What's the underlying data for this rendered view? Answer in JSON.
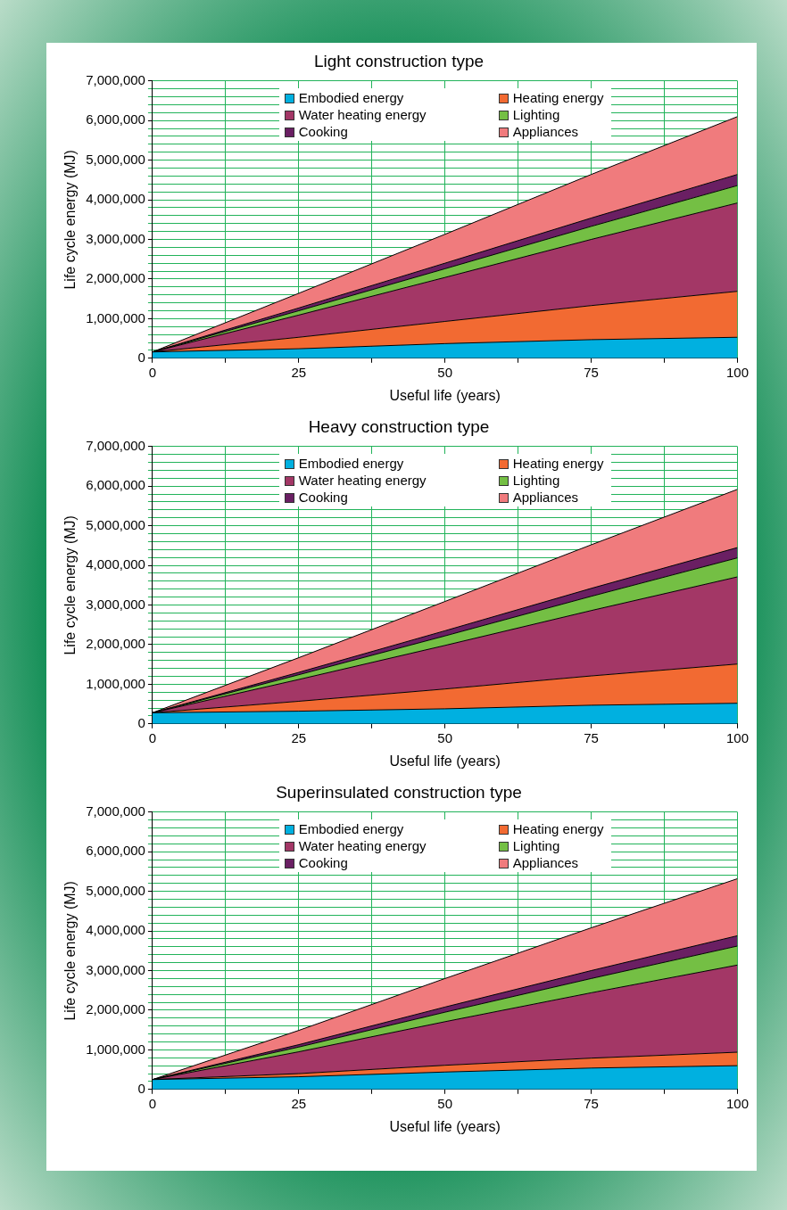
{
  "chart_data": [
    {
      "type": "area",
      "title": "Light construction type",
      "xlabel": "Useful life (years)",
      "ylabel": "Life cycle energy (MJ)",
      "stacked": true,
      "legend": "top",
      "grid": true,
      "x": [
        0,
        25,
        50,
        75,
        100
      ],
      "xlim": [
        0,
        100
      ],
      "xticks": [
        0,
        {
          "value": 12.5,
          "label": null
        },
        25,
        {
          "value": 37.5,
          "label": null
        },
        50,
        {
          "value": 62.5,
          "label": null
        },
        75,
        {
          "value": 87.5,
          "label": null
        },
        100
      ],
      "ylim": [
        0,
        7000000
      ],
      "yticks": [
        {
          "value": 0,
          "label": "0"
        },
        {
          "value": 200000,
          "label": null
        },
        {
          "value": 400000,
          "label": null
        },
        {
          "value": 600000,
          "label": null
        },
        {
          "value": 800000,
          "label": null
        },
        {
          "value": 1000000,
          "label": "1,000,000"
        },
        {
          "value": 1200000,
          "label": null
        },
        {
          "value": 1400000,
          "label": null
        },
        {
          "value": 1600000,
          "label": null
        },
        {
          "value": 1800000,
          "label": null
        },
        {
          "value": 2000000,
          "label": "2,000,000"
        },
        {
          "value": 2200000,
          "label": null
        },
        {
          "value": 2400000,
          "label": null
        },
        {
          "value": 2600000,
          "label": null
        },
        {
          "value": 2800000,
          "label": null
        },
        {
          "value": 3000000,
          "label": "3,000,000"
        },
        {
          "value": 3200000,
          "label": null
        },
        {
          "value": 3400000,
          "label": null
        },
        {
          "value": 3600000,
          "label": null
        },
        {
          "value": 3800000,
          "label": null
        },
        {
          "value": 4000000,
          "label": "4,000,000"
        },
        {
          "value": 4200000,
          "label": null
        },
        {
          "value": 4400000,
          "label": null
        },
        {
          "value": 4600000,
          "label": null
        },
        {
          "value": 4800000,
          "label": null
        },
        {
          "value": 5000000,
          "label": "5,000,000"
        },
        {
          "value": 5200000,
          "label": null
        },
        {
          "value": 5400000,
          "label": null
        },
        {
          "value": 5600000,
          "label": null
        },
        {
          "value": 5800000,
          "label": null
        },
        {
          "value": 6000000,
          "label": "6,000,000"
        },
        {
          "value": 6200000,
          "label": null
        },
        {
          "value": 6400000,
          "label": null
        },
        {
          "value": 6600000,
          "label": null
        },
        {
          "value": 6800000,
          "label": null
        },
        {
          "value": 7000000,
          "label": "7,000,000"
        }
      ],
      "series": [
        {
          "name": "Embodied energy",
          "color": "#00b0e0",
          "values": [
            160000,
            240000,
            370000,
            470000,
            530000
          ]
        },
        {
          "name": "Heating energy",
          "color": "#f26a32",
          "values": [
            0,
            290000,
            560000,
            860000,
            1160000
          ]
        },
        {
          "name": "Water heating energy",
          "color": "#a33766",
          "values": [
            0,
            560000,
            1110000,
            1670000,
            2230000
          ]
        },
        {
          "name": "Lighting",
          "color": "#74bf44",
          "values": [
            0,
            110000,
            220000,
            330000,
            440000
          ]
        },
        {
          "name": "Cooking",
          "color": "#6a1f63",
          "values": [
            0,
            70000,
            140000,
            210000,
            280000
          ]
        },
        {
          "name": "Appliances",
          "color": "#f07b7d",
          "values": [
            0,
            370000,
            730000,
            1100000,
            1460000
          ]
        }
      ]
    },
    {
      "type": "area",
      "title": "Heavy construction type",
      "xlabel": "Useful life (years)",
      "ylabel": "Life cycle energy (MJ)",
      "stacked": true,
      "legend": "top",
      "grid": true,
      "x": [
        0,
        25,
        50,
        75,
        100
      ],
      "xlim": [
        0,
        100
      ],
      "xticks": [
        0,
        {
          "value": 12.5,
          "label": null
        },
        25,
        {
          "value": 37.5,
          "label": null
        },
        50,
        {
          "value": 62.5,
          "label": null
        },
        75,
        {
          "value": 87.5,
          "label": null
        },
        100
      ],
      "ylim": [
        0,
        7000000
      ],
      "yticks": [
        {
          "value": 0,
          "label": "0"
        },
        {
          "value": 200000,
          "label": null
        },
        {
          "value": 400000,
          "label": null
        },
        {
          "value": 600000,
          "label": null
        },
        {
          "value": 800000,
          "label": null
        },
        {
          "value": 1000000,
          "label": "1,000,000"
        },
        {
          "value": 1200000,
          "label": null
        },
        {
          "value": 1400000,
          "label": null
        },
        {
          "value": 1600000,
          "label": null
        },
        {
          "value": 1800000,
          "label": null
        },
        {
          "value": 2000000,
          "label": "2,000,000"
        },
        {
          "value": 2200000,
          "label": null
        },
        {
          "value": 2400000,
          "label": null
        },
        {
          "value": 2600000,
          "label": null
        },
        {
          "value": 2800000,
          "label": null
        },
        {
          "value": 3000000,
          "label": "3,000,000"
        },
        {
          "value": 3200000,
          "label": null
        },
        {
          "value": 3400000,
          "label": null
        },
        {
          "value": 3600000,
          "label": null
        },
        {
          "value": 3800000,
          "label": null
        },
        {
          "value": 4000000,
          "label": "4,000,000"
        },
        {
          "value": 4200000,
          "label": null
        },
        {
          "value": 4400000,
          "label": null
        },
        {
          "value": 4600000,
          "label": null
        },
        {
          "value": 4800000,
          "label": null
        },
        {
          "value": 5000000,
          "label": "5,000,000"
        },
        {
          "value": 5200000,
          "label": null
        },
        {
          "value": 5400000,
          "label": null
        },
        {
          "value": 5600000,
          "label": null
        },
        {
          "value": 5800000,
          "label": null
        },
        {
          "value": 6000000,
          "label": "6,000,000"
        },
        {
          "value": 6200000,
          "label": null
        },
        {
          "value": 6400000,
          "label": null
        },
        {
          "value": 6600000,
          "label": null
        },
        {
          "value": 6800000,
          "label": null
        },
        {
          "value": 7000000,
          "label": "7,000,000"
        }
      ],
      "series": [
        {
          "name": "Embodied energy",
          "color": "#00b0e0",
          "values": [
            280000,
            320000,
            380000,
            470000,
            520000
          ]
        },
        {
          "name": "Heating energy",
          "color": "#f26a32",
          "values": [
            0,
            250000,
            500000,
            740000,
            990000
          ]
        },
        {
          "name": "Water heating energy",
          "color": "#a33766",
          "values": [
            0,
            550000,
            1100000,
            1650000,
            2200000
          ]
        },
        {
          "name": "Lighting",
          "color": "#74bf44",
          "values": [
            0,
            120000,
            240000,
            360000,
            480000
          ]
        },
        {
          "name": "Cooking",
          "color": "#6a1f63",
          "values": [
            0,
            60000,
            130000,
            200000,
            260000
          ]
        },
        {
          "name": "Appliances",
          "color": "#f07b7d",
          "values": [
            0,
            370000,
            740000,
            1100000,
            1470000
          ]
        }
      ]
    },
    {
      "type": "area",
      "title": "Superinsulated construction type",
      "xlabel": "Useful life (years)",
      "ylabel": "Life cycle energy (MJ)",
      "stacked": true,
      "legend": "top",
      "grid": true,
      "x": [
        0,
        25,
        50,
        75,
        100
      ],
      "xlim": [
        0,
        100
      ],
      "xticks": [
        0,
        {
          "value": 12.5,
          "label": null
        },
        25,
        {
          "value": 37.5,
          "label": null
        },
        50,
        {
          "value": 62.5,
          "label": null
        },
        75,
        {
          "value": 87.5,
          "label": null
        },
        100
      ],
      "ylim": [
        0,
        7000000
      ],
      "yticks": [
        {
          "value": 0,
          "label": "0"
        },
        {
          "value": 200000,
          "label": null
        },
        {
          "value": 400000,
          "label": null
        },
        {
          "value": 600000,
          "label": null
        },
        {
          "value": 800000,
          "label": null
        },
        {
          "value": 1000000,
          "label": "1,000,000"
        },
        {
          "value": 1200000,
          "label": null
        },
        {
          "value": 1400000,
          "label": null
        },
        {
          "value": 1600000,
          "label": null
        },
        {
          "value": 1800000,
          "label": null
        },
        {
          "value": 2000000,
          "label": "2,000,000"
        },
        {
          "value": 2200000,
          "label": null
        },
        {
          "value": 2400000,
          "label": null
        },
        {
          "value": 2600000,
          "label": null
        },
        {
          "value": 2800000,
          "label": null
        },
        {
          "value": 3000000,
          "label": "3,000,000"
        },
        {
          "value": 3200000,
          "label": null
        },
        {
          "value": 3400000,
          "label": null
        },
        {
          "value": 3600000,
          "label": null
        },
        {
          "value": 3800000,
          "label": null
        },
        {
          "value": 4000000,
          "label": "4,000,000"
        },
        {
          "value": 4200000,
          "label": null
        },
        {
          "value": 4400000,
          "label": null
        },
        {
          "value": 4600000,
          "label": null
        },
        {
          "value": 4800000,
          "label": null
        },
        {
          "value": 5000000,
          "label": "5,000,000"
        },
        {
          "value": 5200000,
          "label": null
        },
        {
          "value": 5400000,
          "label": null
        },
        {
          "value": 5600000,
          "label": null
        },
        {
          "value": 5800000,
          "label": null
        },
        {
          "value": 6000000,
          "label": "6,000,000"
        },
        {
          "value": 6200000,
          "label": null
        },
        {
          "value": 6400000,
          "label": null
        },
        {
          "value": 6600000,
          "label": null
        },
        {
          "value": 6800000,
          "label": null
        },
        {
          "value": 7000000,
          "label": "7,000,000"
        }
      ],
      "series": [
        {
          "name": "Embodied energy",
          "color": "#00b0e0",
          "values": [
            250000,
            320000,
            440000,
            540000,
            600000
          ]
        },
        {
          "name": "Heating energy",
          "color": "#f26a32",
          "values": [
            0,
            80000,
            170000,
            250000,
            340000
          ]
        },
        {
          "name": "Water heating energy",
          "color": "#a33766",
          "values": [
            0,
            550000,
            1100000,
            1650000,
            2200000
          ]
        },
        {
          "name": "Lighting",
          "color": "#74bf44",
          "values": [
            0,
            120000,
            240000,
            360000,
            480000
          ]
        },
        {
          "name": "Cooking",
          "color": "#6a1f63",
          "values": [
            0,
            60000,
            130000,
            200000,
            260000
          ]
        },
        {
          "name": "Appliances",
          "color": "#f07b7d",
          "values": [
            0,
            360000,
            720000,
            1080000,
            1440000
          ]
        }
      ]
    }
  ]
}
